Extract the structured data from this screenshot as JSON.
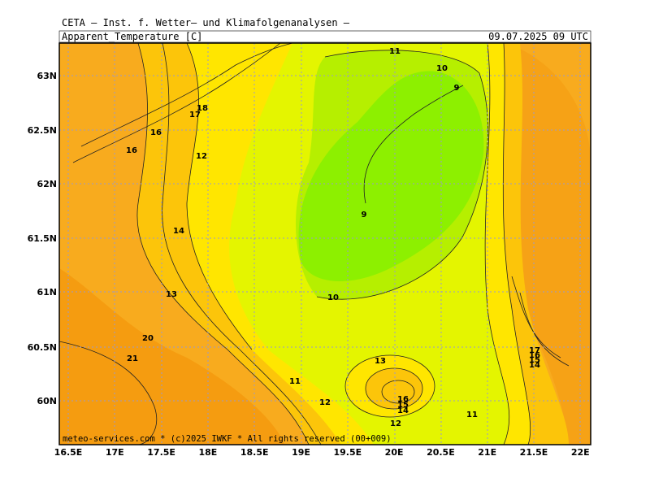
{
  "header": {
    "title": "CETA — Inst. f. Wetter— und Klimafolgenanalysen —",
    "parameter": "Apparent_Temperature [C]",
    "valid_time": "09.07.2025 09 UTC"
  },
  "map": {
    "lon_labels": [
      "16.5E",
      "17E",
      "17.5E",
      "18E",
      "18.5E",
      "19E",
      "19.5E",
      "20E",
      "20.5E",
      "21E",
      "21.5E",
      "22E"
    ],
    "lat_labels": [
      "63N",
      "62.5N",
      "62N",
      "61.5N",
      "61N",
      "60.5N",
      "60N"
    ],
    "contour_labels": [
      "11",
      "10",
      "9",
      "18",
      "17",
      "16",
      "16",
      "12",
      "9",
      "14",
      "13",
      "10",
      "20",
      "21",
      "13",
      "11",
      "12",
      "16",
      "15",
      "14",
      "12",
      "11",
      "17",
      "16",
      "15",
      "14"
    ],
    "footer": "meteo-services.com * (c)2025 IWKF * All rights reserved (00+009)"
  }
}
